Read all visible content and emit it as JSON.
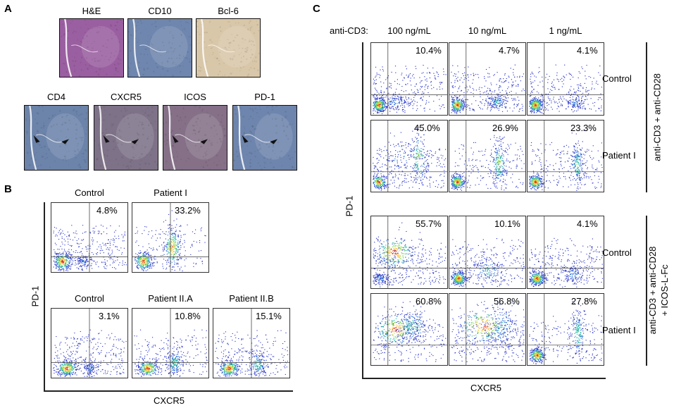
{
  "panel_a": {
    "label": "A",
    "top_row": [
      {
        "stain": "H&E",
        "color": "#9a5fa0"
      },
      {
        "stain": "CD10",
        "color": "#6f86ae"
      },
      {
        "stain": "Bcl-6",
        "color": "#d9c7a9"
      }
    ],
    "bottom_row": [
      {
        "stain": "CD4",
        "color": "#6c83aa"
      },
      {
        "stain": "CXCR5",
        "color": "#7e7288"
      },
      {
        "stain": "ICOS",
        "color": "#857088"
      },
      {
        "stain": "PD-1",
        "color": "#6e85ad"
      }
    ]
  },
  "panel_b": {
    "label": "B",
    "y_axis": "PD-1",
    "x_axis": "CXCR5",
    "row1": [
      {
        "sample": "Control",
        "pct": "4.8%"
      },
      {
        "sample": "Patient I",
        "pct": "33.2%"
      }
    ],
    "row2": [
      {
        "sample": "Control",
        "pct": "3.1%"
      },
      {
        "sample": "Patient II.A",
        "pct": "10.8%"
      },
      {
        "sample": "Patient II.B",
        "pct": "15.1%"
      }
    ]
  },
  "panel_c": {
    "label": "C",
    "stim_label": "anti-CD3:",
    "doses": [
      "100 ng/mL",
      "10 ng/mL",
      "1 ng/mL"
    ],
    "y_axis": "PD-1",
    "x_axis": "CXCR5",
    "condition1": "anti-CD3 + anti-CD28",
    "condition2_line1": "anti-CD3 + anti-CD28",
    "condition2_line2": "+ ICOS-L-Fc",
    "rows": [
      {
        "sample": "Control",
        "pcts": [
          "10.4%",
          "4.7%",
          "4.1%"
        ]
      },
      {
        "sample": "Patient I",
        "pcts": [
          "45.0%",
          "26.9%",
          "23.3%"
        ]
      },
      {
        "sample": "Control",
        "pcts": [
          "55.7%",
          "10.1%",
          "4.1%"
        ]
      },
      {
        "sample": "Patient I",
        "pcts": [
          "60.8%",
          "56.8%",
          "27.8%"
        ]
      }
    ]
  }
}
